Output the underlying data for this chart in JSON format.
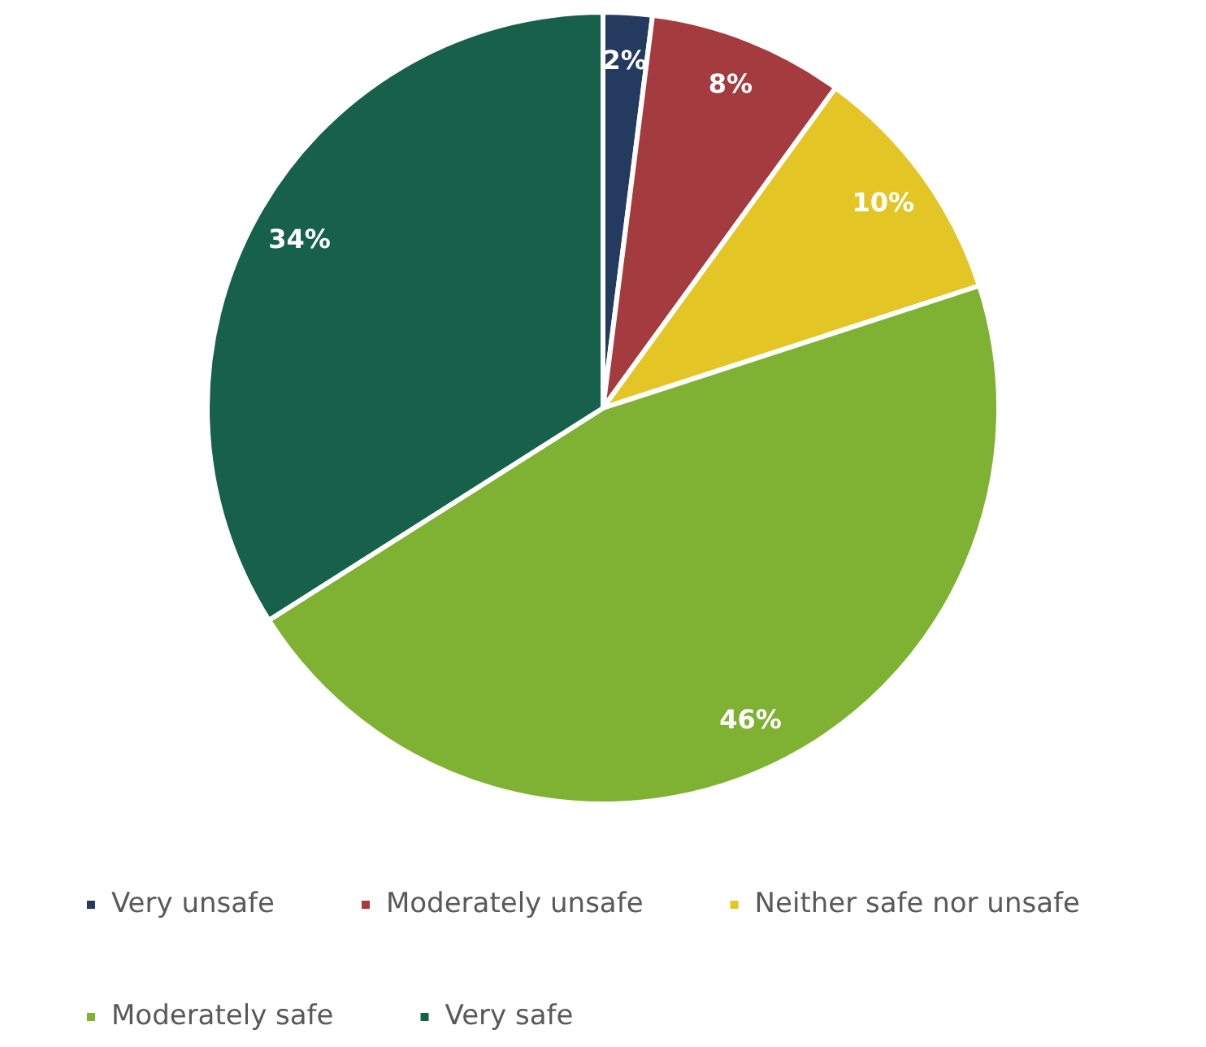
{
  "chart_data": {
    "type": "pie",
    "categories": [
      "Very unsafe",
      "Moderately unsafe",
      "Neither safe nor unsafe",
      "Moderately safe",
      "Very safe"
    ],
    "values": [
      2,
      8,
      10,
      46,
      34
    ],
    "value_labels": [
      "2%",
      "8%",
      "10%",
      "46%",
      "34%"
    ],
    "colors": [
      "#243a5e",
      "#a33b3f",
      "#e3c626",
      "#7fb132",
      "#17604a"
    ],
    "legend": "bottom"
  }
}
